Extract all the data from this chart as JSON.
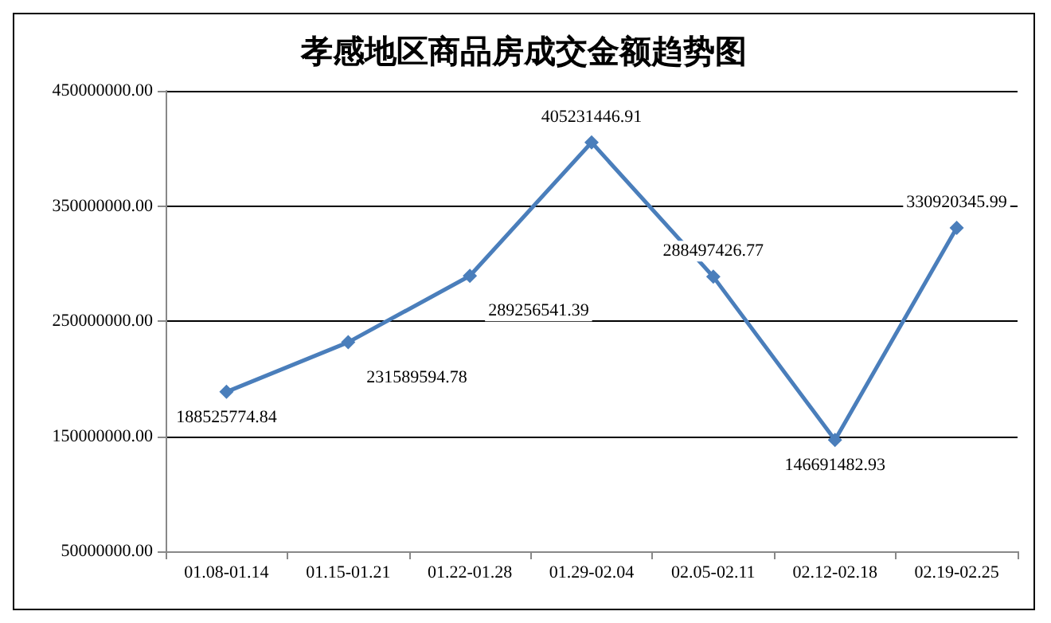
{
  "chart_data": {
    "type": "line",
    "title": "孝感地区商品房成交金额趋势图",
    "categories": [
      "01.08-01.14",
      "01.15-01.21",
      "01.22-01.28",
      "01.29-02.04",
      "02.05-02.11",
      "02.12-02.18",
      "02.19-02.25"
    ],
    "series": [
      {
        "color": "#4a7ebb",
        "values": [
          188525774.84,
          231589594.78,
          289256541.39,
          405231446.91,
          288497426.77,
          146691482.93,
          330920345.99
        ]
      }
    ],
    "ylim": [
      50000000,
      450000000
    ],
    "yticks": [
      {
        "value": 50000000,
        "label": "50000000.00"
      },
      {
        "value": 150000000,
        "label": "150000000.00"
      },
      {
        "value": 250000000,
        "label": "250000000.00"
      },
      {
        "value": 350000000,
        "label": "350000000.00"
      },
      {
        "value": 450000000,
        "label": "450000000.00"
      }
    ],
    "grid": "y",
    "marker": "diamond",
    "line_style": "solid",
    "data_labels": true
  }
}
